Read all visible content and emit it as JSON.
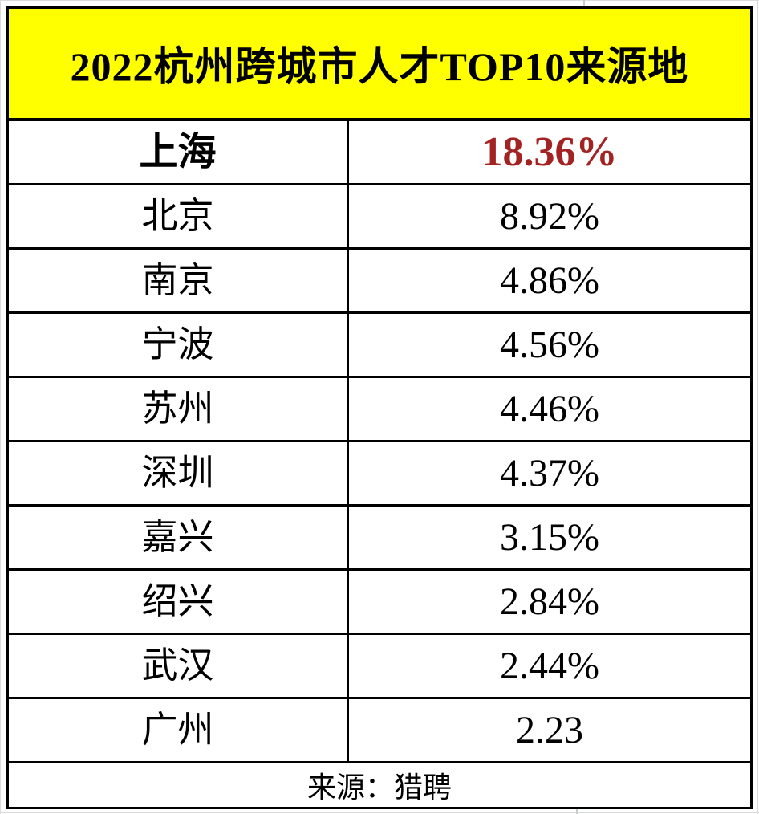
{
  "chart_data": {
    "type": "table",
    "title": "2022杭州跨城市人才TOP10来源地",
    "rows": [
      {
        "city": "上海",
        "value": 18.36,
        "value_label": "18.36%",
        "highlight": true
      },
      {
        "city": "北京",
        "value": 8.92,
        "value_label": "8.92%",
        "highlight": false
      },
      {
        "city": "南京",
        "value": 4.86,
        "value_label": "4.86%",
        "highlight": false
      },
      {
        "city": "宁波",
        "value": 4.56,
        "value_label": "4.56%",
        "highlight": false
      },
      {
        "city": "苏州",
        "value": 4.46,
        "value_label": "4.46%",
        "highlight": false
      },
      {
        "city": "深圳",
        "value": 4.37,
        "value_label": "4.37%",
        "highlight": false
      },
      {
        "city": "嘉兴",
        "value": 3.15,
        "value_label": "3.15%",
        "highlight": false
      },
      {
        "city": "绍兴",
        "value": 2.84,
        "value_label": "2.84%",
        "highlight": false
      },
      {
        "city": "武汉",
        "value": 2.44,
        "value_label": "2.44%",
        "highlight": false
      },
      {
        "city": "广州",
        "value": 2.23,
        "value_label": "2.23",
        "highlight": false
      }
    ],
    "unit": "%",
    "source_note": "来源：猎聘"
  },
  "colors": {
    "header_bg": "#ffff00",
    "highlight_text": "#a32222",
    "border": "#000000",
    "text": "#000000"
  }
}
